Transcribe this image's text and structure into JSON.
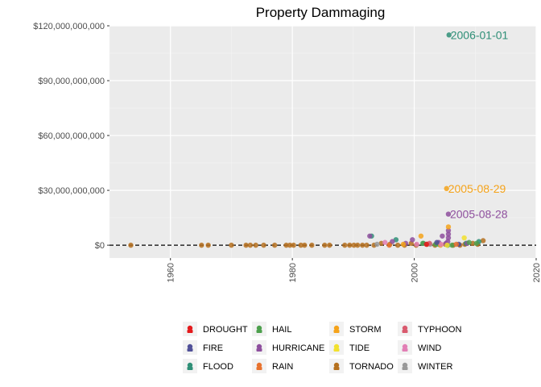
{
  "chart_data": {
    "type": "scatter",
    "title": "Property Dammaging",
    "xlabel": "",
    "ylabel": "",
    "xlim": [
      1950,
      2020
    ],
    "ylim": [
      -7000000000,
      120000000000
    ],
    "x_ticks": [
      1960,
      1980,
      2000,
      2020
    ],
    "x_tick_labels": [
      "1960",
      "1980",
      "2000",
      "2020"
    ],
    "y_ticks": [
      0,
      30000000000,
      60000000000,
      90000000000,
      120000000000
    ],
    "y_tick_labels": [
      "$0",
      "$30,000,000,000",
      "$60,000,000,000",
      "$90,000,000,000",
      "$120,000,000,000"
    ],
    "reference_line": {
      "y": 0,
      "style": "dashed",
      "color": "#000000"
    },
    "grid": true,
    "legend_position": "bottom",
    "categories": [
      {
        "name": "DROUGHT",
        "color": "#e41a1c"
      },
      {
        "name": "FIRE",
        "color": "#505098"
      },
      {
        "name": "FLOOD",
        "color": "#2f8f77"
      },
      {
        "name": "HAIL",
        "color": "#4da04d"
      },
      {
        "name": "HURRICANE",
        "color": "#8e4f9e"
      },
      {
        "name": "RAIN",
        "color": "#e8722e"
      },
      {
        "name": "STORM",
        "color": "#f5a31a"
      },
      {
        "name": "TIDE",
        "color": "#f2e12e"
      },
      {
        "name": "TORNADO",
        "color": "#b5701e"
      },
      {
        "name": "TYPHOON",
        "color": "#d95a6e"
      },
      {
        "name": "WIND",
        "color": "#e27fb5"
      },
      {
        "name": "WINTER",
        "color": "#999999"
      }
    ],
    "series": [
      {
        "name": "TORNADO",
        "x": [
          1953.5,
          1965.1,
          1966.2,
          1970.0,
          1972.4,
          1973.1,
          1974.0,
          1975.3,
          1977.1,
          1979.0,
          1979.6,
          1980.2,
          1981.4,
          1982.0,
          1983.2,
          1985.3,
          1986.1,
          1988.6,
          1989.4,
          1990.1,
          1990.7,
          1991.5,
          1992.2,
          1993.4,
          1994.6,
          1996.0,
          1997.3,
          1998.4,
          1999.5,
          2000.3,
          2002.1,
          2003.4,
          2005.1,
          2006.4,
          2007.5,
          2008.3,
          2009.6,
          2010.4,
          2011.3
        ],
        "y": [
          0,
          0,
          0,
          0,
          0,
          0,
          0,
          0,
          0,
          0,
          0,
          0,
          0,
          0,
          0,
          0,
          0,
          0,
          0,
          0,
          0,
          0,
          0,
          0,
          1000000000,
          500000000,
          0,
          0,
          1000000000,
          0,
          500000000,
          0,
          500000000,
          0,
          0,
          500000000,
          1000000000,
          500000000,
          2500000000
        ]
      },
      {
        "name": "FLOOD",
        "x": [
          1993.0,
          1997.0,
          2001.5,
          2004.0,
          2005.5,
          2008.5,
          2010.6,
          2005.7
        ],
        "y": [
          5000000000,
          3000000000,
          1000000000,
          500000000,
          0,
          1000000000,
          2000000000,
          115000000000
        ]
      },
      {
        "name": "HURRICANE",
        "x": [
          1992.7,
          1996.4,
          1998.6,
          1999.7,
          2004.0,
          2004.6,
          2005.2,
          2005.5,
          2005.6,
          2005.6,
          2005.6,
          2005.6,
          2008.7
        ],
        "y": [
          5000000000,
          2000000000,
          1000000000,
          3000000000,
          1500000000,
          5000000000,
          1000000000,
          2000000000,
          4000000000,
          6000000000,
          8000000000,
          17000000000,
          1000000000
        ]
      },
      {
        "name": "STORM",
        "x": [
          1998.2,
          2001.1,
          2004.3,
          2005.6,
          2005.3
        ],
        "y": [
          500000000,
          5000000000,
          0,
          10000000000,
          31000000000
        ]
      },
      {
        "name": "HAIL",
        "x": [
          2001.4,
          2003.5,
          2006.2,
          2009.0,
          2010.2
        ],
        "y": [
          1000000000,
          500000000,
          0,
          1500000000,
          1000000000
        ]
      },
      {
        "name": "WIND",
        "x": [
          1995.2,
          2000.4,
          2004.4
        ],
        "y": [
          1500000000,
          500000000,
          500000000
        ]
      },
      {
        "name": "TIDE",
        "x": [
          2005.4,
          2008.2
        ],
        "y": [
          0,
          4000000000
        ]
      },
      {
        "name": "FIRE",
        "x": [
          2003.7,
          2007.3
        ],
        "y": [
          1500000000,
          500000000
        ]
      },
      {
        "name": "WINTER",
        "x": [
          1993.9,
          2002.6
        ],
        "y": [
          500000000,
          500000000
        ]
      },
      {
        "name": "RAIN",
        "x": [
          1995.9,
          2006.9
        ],
        "y": [
          0,
          500000000
        ]
      },
      {
        "name": "TYPHOON",
        "x": [
          2002.5
        ],
        "y": [
          1000000000
        ]
      },
      {
        "name": "DROUGHT",
        "x": [
          2002.0
        ],
        "y": [
          500000000
        ]
      }
    ],
    "annotations": [
      {
        "text": "2006-01-01",
        "x": 2005.7,
        "y": 115000000000,
        "color": "#2f8f77"
      },
      {
        "text": "2005-08-29",
        "x": 2005.3,
        "y": 31000000000,
        "color": "#f5a31a"
      },
      {
        "text": "2005-08-28",
        "x": 2005.6,
        "y": 17000000000,
        "color": "#8e4f9e"
      }
    ]
  }
}
